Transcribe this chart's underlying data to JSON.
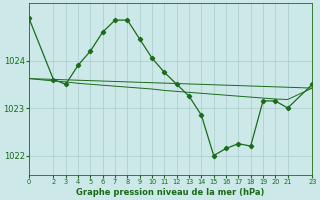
{
  "title": "Graphe pression niveau de la mer (hPa)",
  "background_color": "#cce8e8",
  "grid_color": "#aacccc",
  "line_color": "#1a6b1a",
  "xlim": [
    0,
    23
  ],
  "ylim": [
    1021.6,
    1025.2
  ],
  "yticks": [
    1022,
    1023,
    1024
  ],
  "xticks": [
    0,
    2,
    3,
    4,
    5,
    6,
    7,
    8,
    9,
    10,
    11,
    12,
    13,
    14,
    15,
    16,
    17,
    18,
    19,
    20,
    21,
    23
  ],
  "hours": [
    0,
    2,
    3,
    4,
    5,
    6,
    7,
    8,
    9,
    10,
    11,
    12,
    13,
    14,
    15,
    16,
    17,
    18,
    19,
    20,
    21,
    23
  ],
  "pressure": [
    1024.9,
    1023.6,
    1023.5,
    1023.9,
    1024.2,
    1024.6,
    1024.85,
    1024.85,
    1024.45,
    1024.05,
    1023.75,
    1023.5,
    1023.25,
    1022.85,
    1022.0,
    1022.15,
    1022.25,
    1022.2,
    1023.15,
    1023.15,
    1023.0,
    1023.5
  ],
  "trend_hours": [
    0,
    23
  ],
  "trend_pres": [
    1023.62,
    1023.42
  ],
  "smooth_hours": [
    0,
    2,
    3,
    4,
    5,
    6,
    7,
    8,
    9,
    10,
    11,
    12,
    13,
    14,
    15,
    16,
    17,
    18,
    19,
    20,
    21,
    23
  ],
  "smooth_pres": [
    1023.62,
    1023.57,
    1023.55,
    1023.52,
    1023.5,
    1023.48,
    1023.46,
    1023.44,
    1023.42,
    1023.4,
    1023.37,
    1023.35,
    1023.33,
    1023.31,
    1023.29,
    1023.27,
    1023.25,
    1023.23,
    1023.21,
    1023.19,
    1023.18,
    1023.42
  ],
  "figwidth": 3.2,
  "figheight": 2.0,
  "dpi": 100
}
